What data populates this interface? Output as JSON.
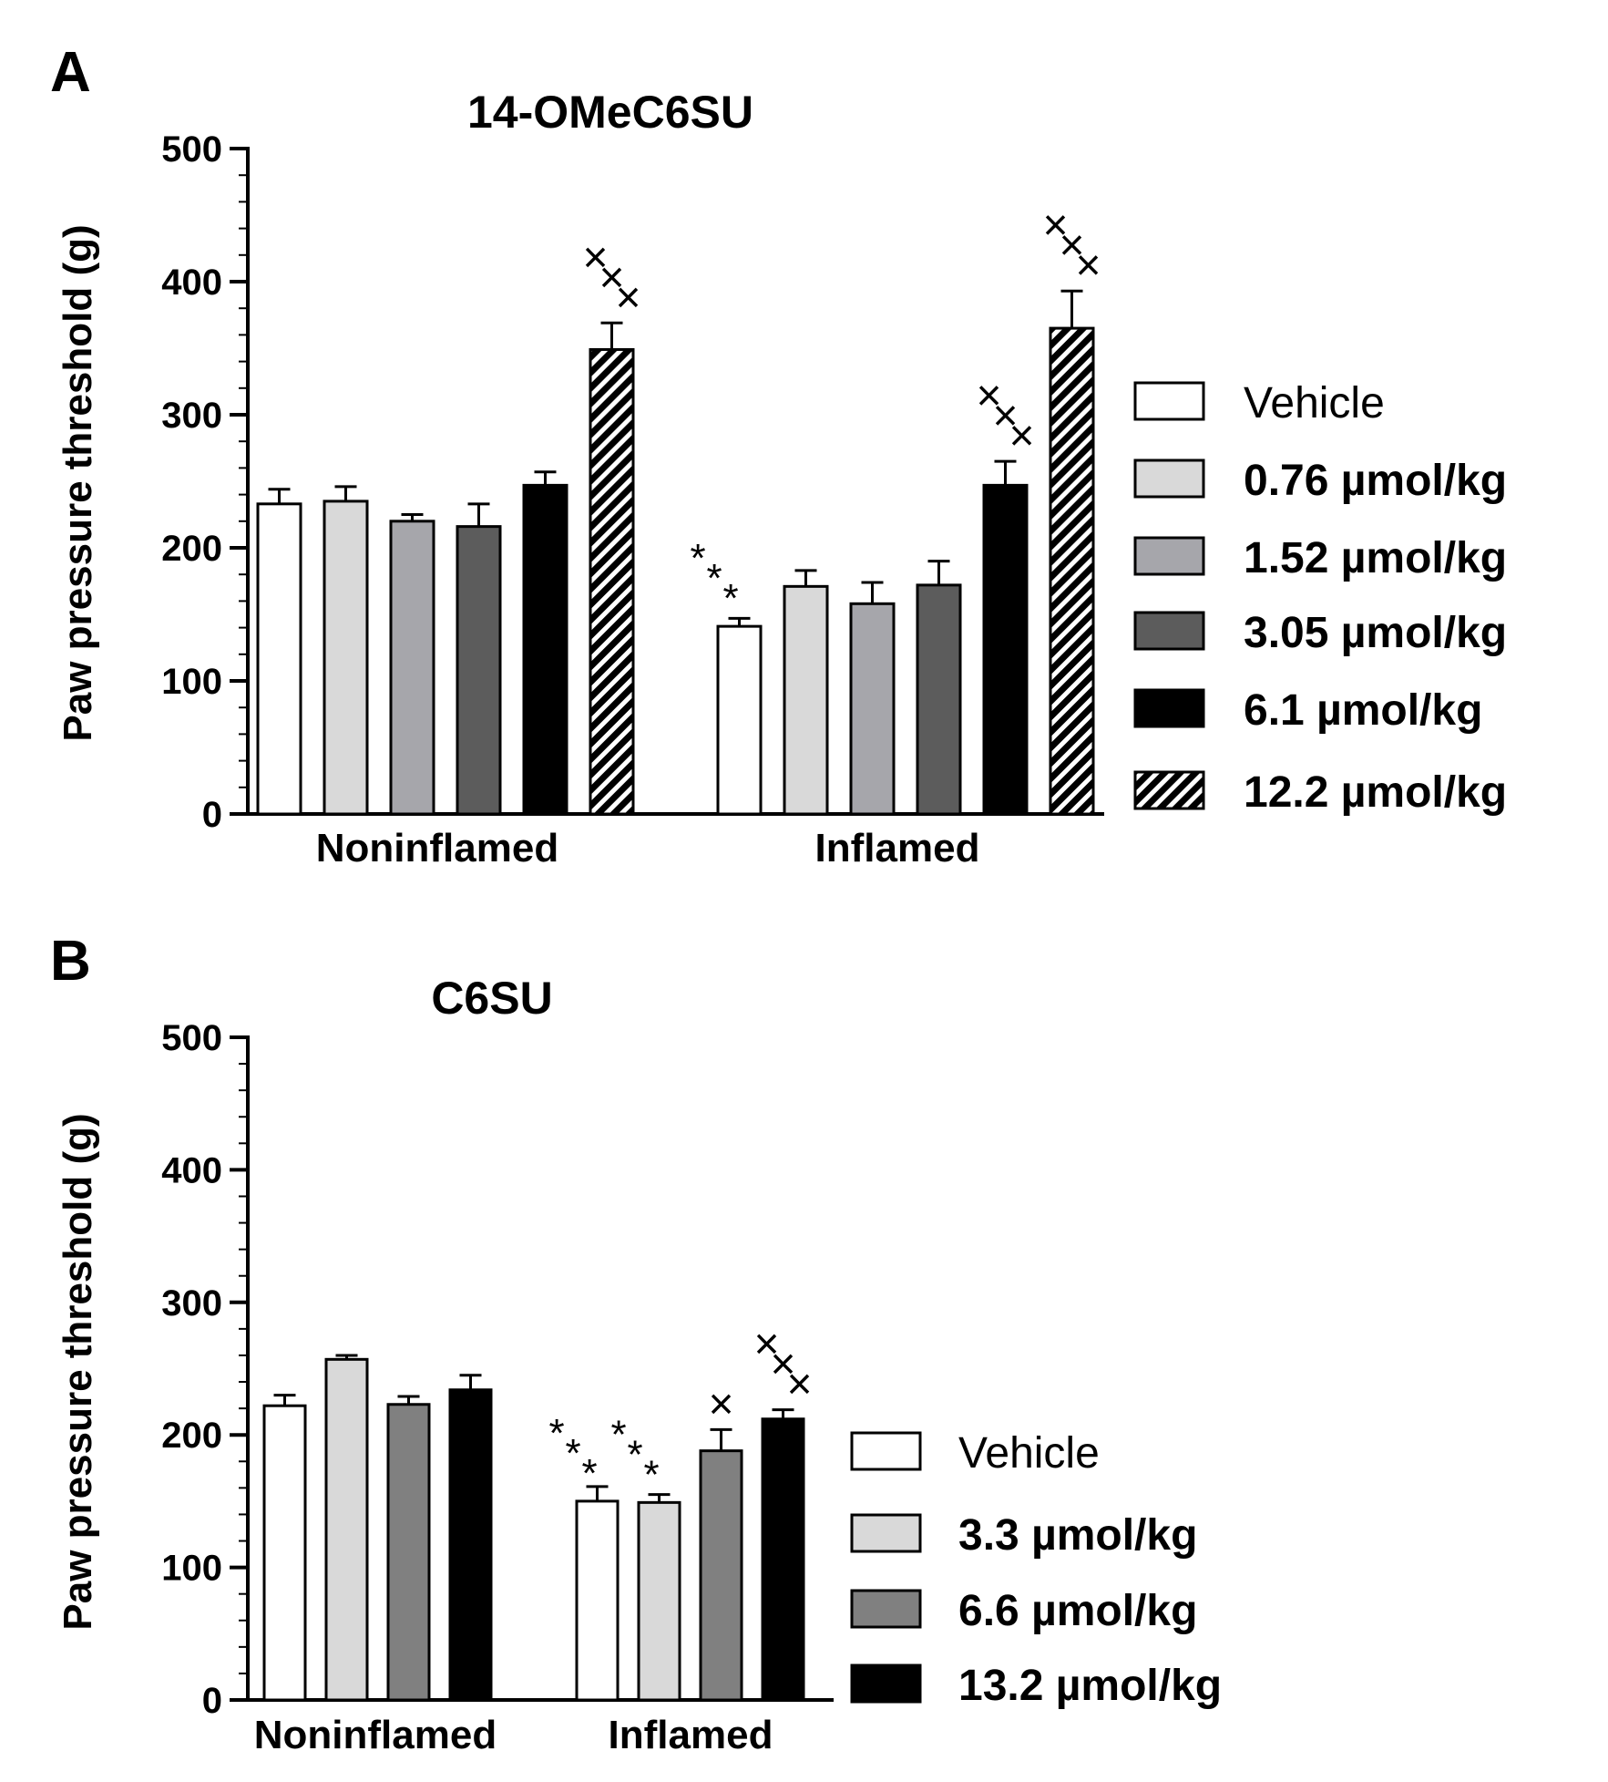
{
  "chart_data": [
    {
      "panel": "A",
      "type": "bar",
      "title": "14-OMeC6SU",
      "ylabel": "Paw pressure threshold (g)",
      "xlabel": "",
      "ylim": [
        0,
        500
      ],
      "yticks": [
        0,
        100,
        200,
        300,
        400,
        500
      ],
      "categories": [
        "Noninflamed",
        "Inflamed"
      ],
      "legend_position": "right",
      "series": [
        {
          "name": "Vehicle",
          "fill": "#ffffff",
          "pattern": "none",
          "values": [
            233,
            141
          ],
          "errors": [
            11,
            6
          ],
          "significance": [
            "",
            "***"
          ]
        },
        {
          "name": "0.76 µmol/kg",
          "fill": "#d9d9d9",
          "pattern": "none",
          "values": [
            235,
            171
          ],
          "errors": [
            11,
            12
          ],
          "significance": [
            "",
            ""
          ]
        },
        {
          "name": "1.52 µmol/kg",
          "fill": "#a6a6ab",
          "pattern": "none",
          "values": [
            220,
            158
          ],
          "errors": [
            5,
            16
          ],
          "significance": [
            "",
            ""
          ]
        },
        {
          "name": "3.05 µmol/kg",
          "fill": "#5c5c5c",
          "pattern": "none",
          "values": [
            216,
            172
          ],
          "errors": [
            17,
            18
          ],
          "significance": [
            "",
            ""
          ]
        },
        {
          "name": "6.1 µmol/kg",
          "fill": "#000000",
          "pattern": "none",
          "values": [
            247,
            247
          ],
          "errors": [
            10,
            18
          ],
          "significance": [
            "",
            "xxx"
          ]
        },
        {
          "name": "12.2 µmol/kg",
          "fill": "#000000",
          "pattern": "hatch",
          "values": [
            349,
            365
          ],
          "errors": [
            20,
            28
          ],
          "significance": [
            "xxx",
            "xxx"
          ]
        }
      ]
    },
    {
      "panel": "B",
      "type": "bar",
      "title": "C6SU",
      "ylabel": "Paw pressure threshold (g)",
      "xlabel": "",
      "ylim": [
        0,
        500
      ],
      "yticks": [
        0,
        100,
        200,
        300,
        400,
        500
      ],
      "categories": [
        "Noninflamed",
        "Inflamed"
      ],
      "legend_position": "right",
      "series": [
        {
          "name": "Vehicle",
          "fill": "#ffffff",
          "pattern": "none",
          "values": [
            222,
            150
          ],
          "errors": [
            8,
            11
          ],
          "significance": [
            "",
            "***"
          ]
        },
        {
          "name": "3.3 µmol/kg",
          "fill": "#d9d9d9",
          "pattern": "none",
          "values": [
            257,
            149
          ],
          "errors": [
            3,
            6
          ],
          "significance": [
            "",
            "***"
          ]
        },
        {
          "name": "6.6 µmol/kg",
          "fill": "#808080",
          "pattern": "none",
          "values": [
            223,
            188
          ],
          "errors": [
            6,
            16
          ],
          "significance": [
            "",
            "x"
          ]
        },
        {
          "name": "13.2 µmol/kg",
          "fill": "#000000",
          "pattern": "none",
          "values": [
            234,
            212
          ],
          "errors": [
            11,
            7
          ],
          "significance": [
            "",
            "xxx"
          ]
        }
      ]
    }
  ]
}
